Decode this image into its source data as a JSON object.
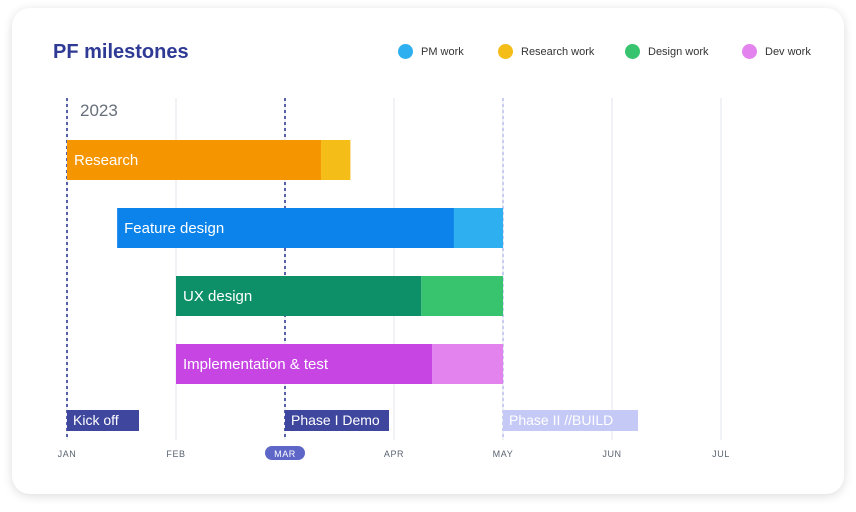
{
  "chart_data": {
    "type": "gantt",
    "title": "PF milestones",
    "year_label": "2023",
    "months": [
      "JAN",
      "FEB",
      "MAR",
      "APR",
      "MAY",
      "JUN",
      "JUL"
    ],
    "highlighted_month": "MAR",
    "x_range": [
      0,
      6.3
    ],
    "legend": {
      "placement": "top-right",
      "items": [
        {
          "name": "PM work",
          "color": "#2eb0f0"
        },
        {
          "name": "Research work",
          "color": "#f5bd18"
        },
        {
          "name": "Design work",
          "color": "#38c46e"
        },
        {
          "name": "Dev work",
          "color": "#e384ee"
        }
      ]
    },
    "tasks": [
      {
        "name": "Research",
        "start": 0.0,
        "end": 2.33,
        "split": 2.33,
        "tail_end": 2.6,
        "main_color": "#f59500",
        "tail_color": "#f5bd18"
      },
      {
        "name": "Feature design",
        "start": 0.46,
        "end": 3.55,
        "split": 3.55,
        "tail_end": 4.0,
        "main_color": "#0b83ea",
        "tail_color": "#2eb0f0"
      },
      {
        "name": "UX design",
        "start": 1.0,
        "end": 3.25,
        "split": 3.25,
        "tail_end": 4.0,
        "main_color": "#0d9068",
        "tail_color": "#38c46e"
      },
      {
        "name": "Implementation & test",
        "start": 1.0,
        "end": 3.35,
        "split": 3.35,
        "tail_end": 4.0,
        "main_color": "#c645e3",
        "tail_color": "#e384ee"
      }
    ],
    "milestones": [
      {
        "label": "Kick off",
        "x": 0.0,
        "style": "dark",
        "line_color": "#2e3a94",
        "fill": "#3f469e",
        "text_color": "#ffffff"
      },
      {
        "label": "Phase I Demo",
        "x": 2.0,
        "style": "dark",
        "line_color": "#2e3a94",
        "fill": "#3f469e",
        "text_color": "#ffffff"
      },
      {
        "label": "Phase II //BUILD",
        "x": 4.0,
        "style": "light",
        "line_color": "#a8aee6",
        "fill": "#c5c9f5",
        "text_color": "#ffffff"
      }
    ],
    "grid": true
  }
}
